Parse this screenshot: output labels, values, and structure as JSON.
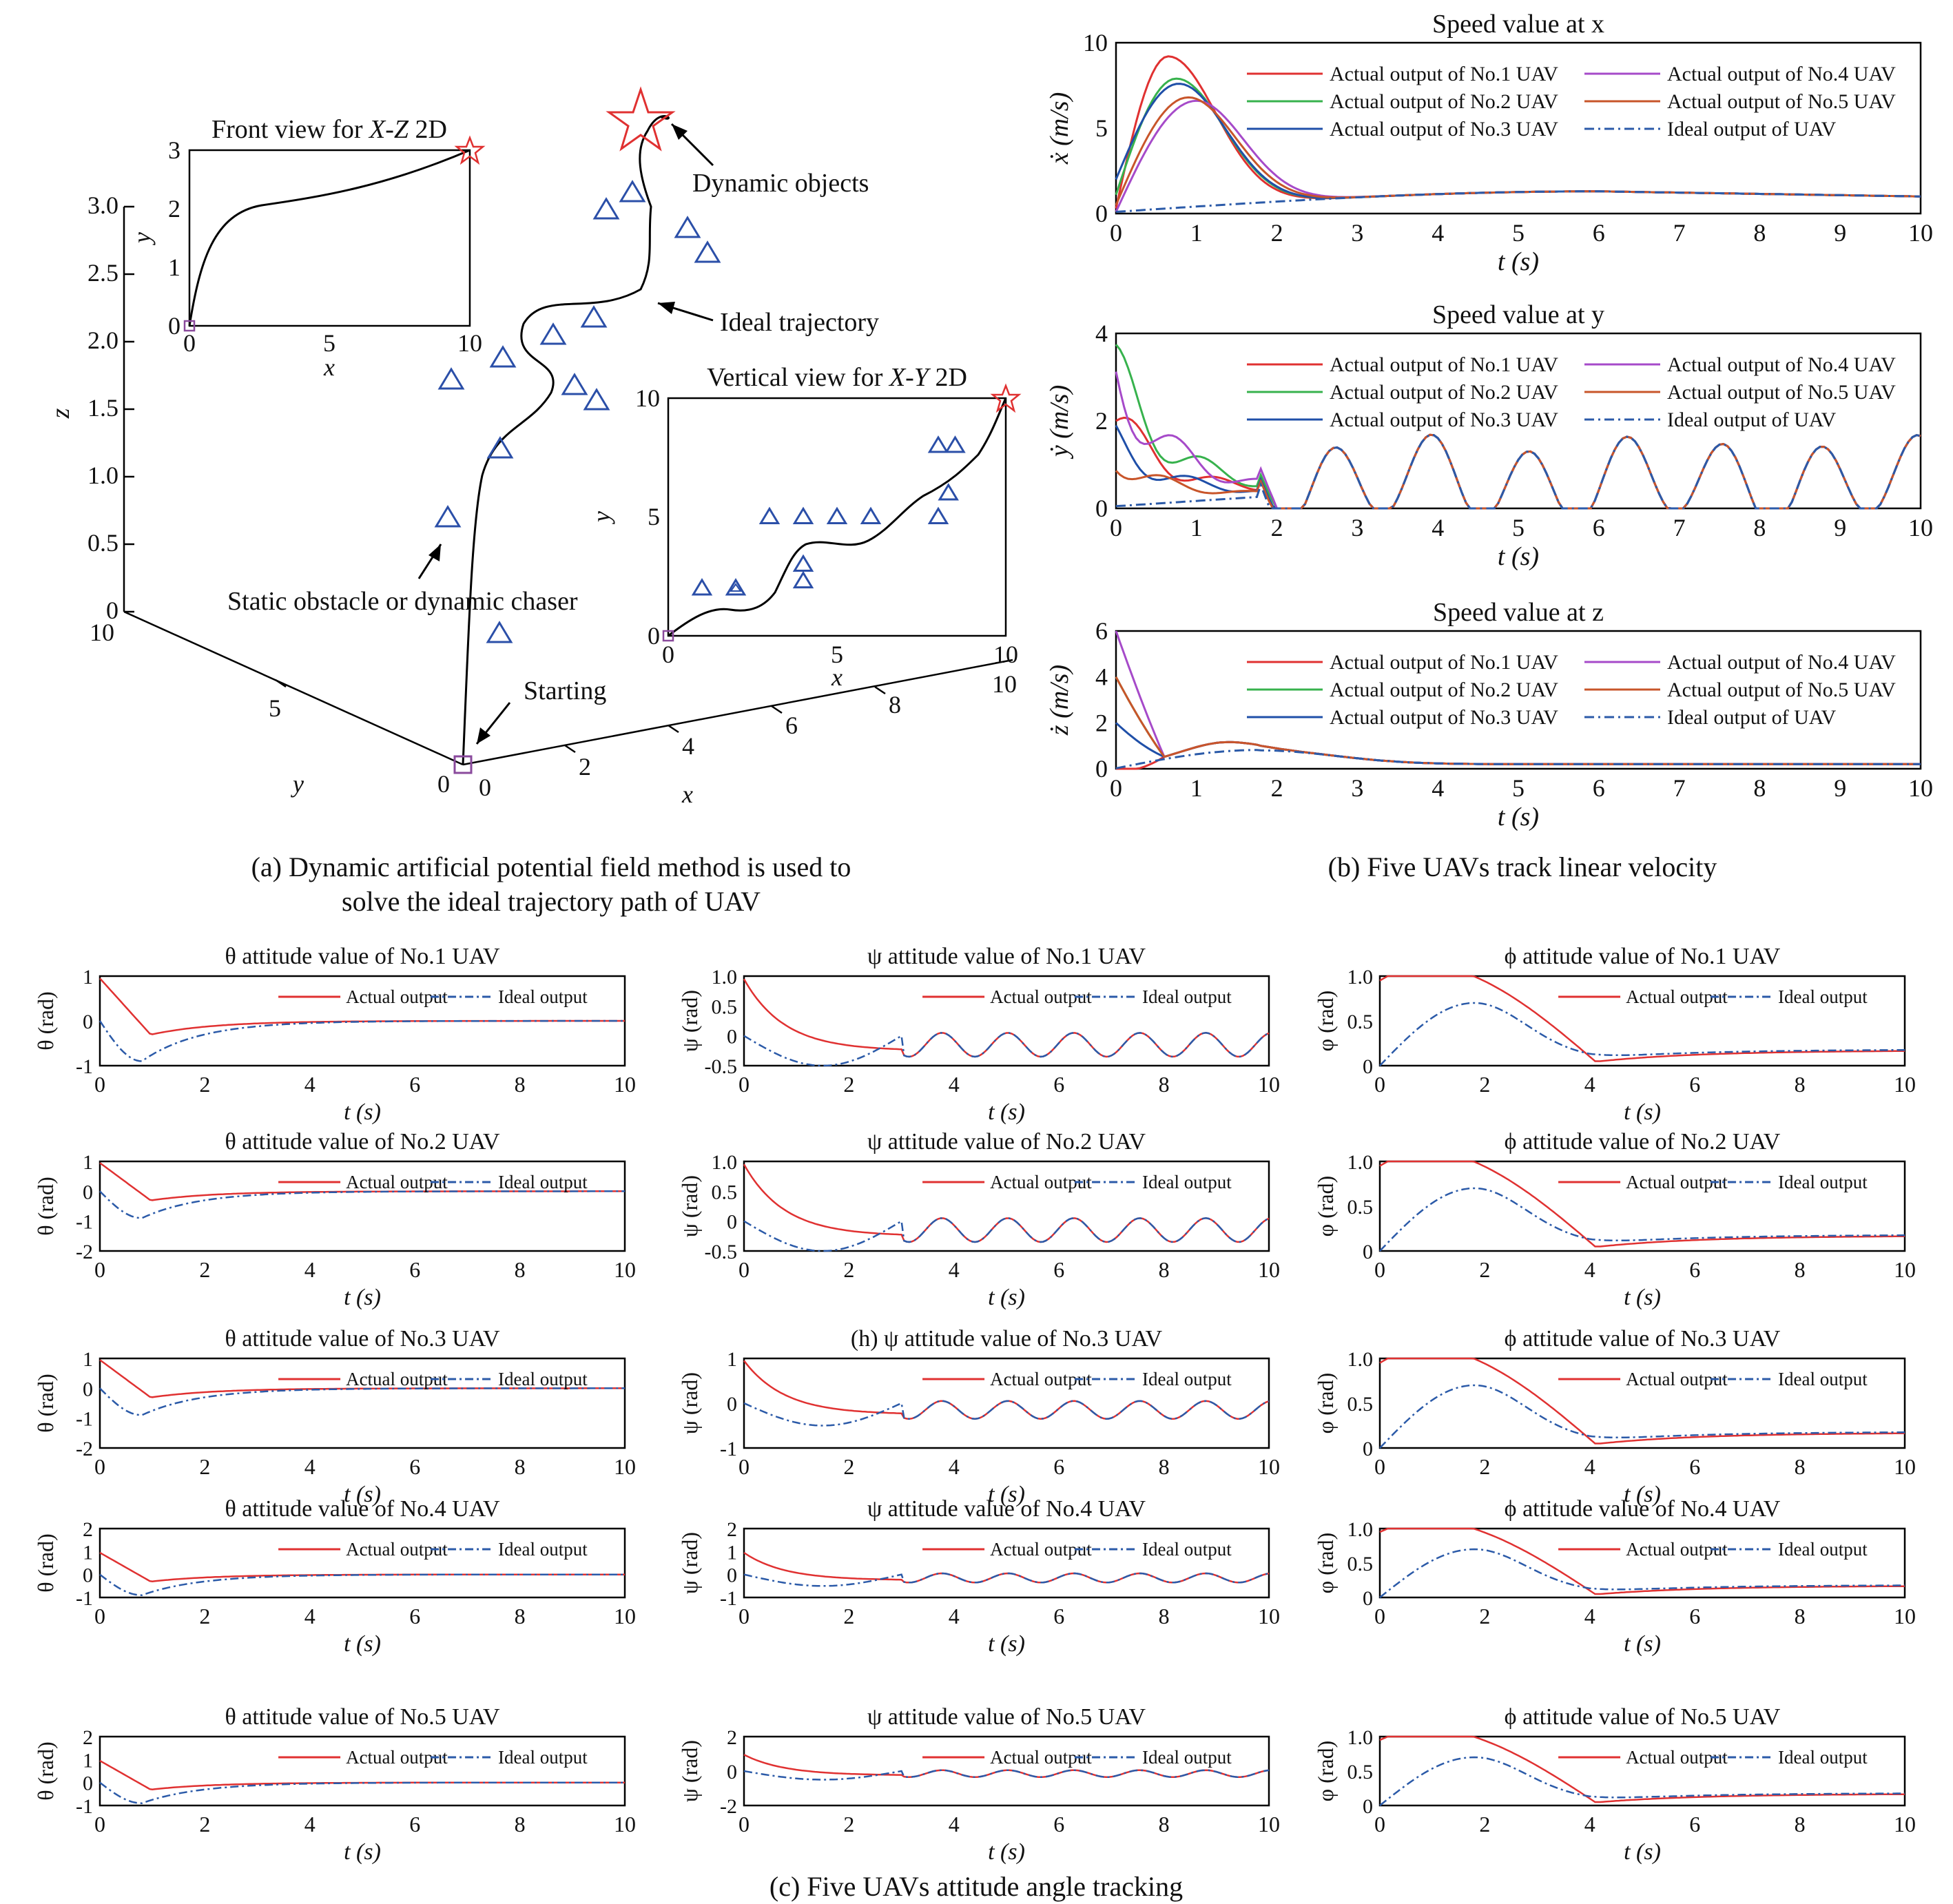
{
  "colors": {
    "uav1": "#e03131",
    "uav2": "#37b24d",
    "uav3": "#1f4fa8",
    "uav4": "#a64ac9",
    "uav5": "#c8552a",
    "ideal": "#2b5aa8",
    "obstacle": "#2b4fa8",
    "star": "#e03131",
    "start": "#8a4a9c"
  },
  "captions": {
    "a_line1": "(a) Dynamic artificial potential field method is used to",
    "a_line2": "solve the ideal trajectory path of UAV",
    "b": "(b) Five UAVs track linear velocity",
    "c": "(c) Five UAVs attitude angle tracking"
  },
  "panel_a": {
    "z_ticks": [
      "0",
      "0.5",
      "1.0",
      "1.5",
      "2.0",
      "2.5",
      "3.0"
    ],
    "z_label": "z",
    "y_ticks": [
      "10",
      "5",
      "0"
    ],
    "y_label": "y",
    "x_ticks": [
      "0",
      "2",
      "4",
      "6",
      "8",
      "10"
    ],
    "x_label": "x",
    "annotations": {
      "dynamic_objects": "Dynamic objects",
      "ideal_trajectory": "Ideal trajectory",
      "static_obstacle": "Static obstacle or dynamic chaser",
      "starting": "Starting"
    },
    "front_view": {
      "title_prefix": "Front view for ",
      "title_italic": "X-Z",
      "title_suffix": " 2D",
      "x_ticks": [
        "0",
        "5",
        "10"
      ],
      "y_ticks": [
        "0",
        "1",
        "2",
        "3"
      ],
      "x_label": "x",
      "y_label": "y"
    },
    "vertical_view": {
      "title_prefix": "Vertical view for ",
      "title_italic": "X-Y",
      "title_suffix": " 2D",
      "x_ticks": [
        "0",
        "5",
        "10"
      ],
      "y_ticks": [
        "0",
        "5",
        "10"
      ],
      "x_label": "x",
      "y_label": "y",
      "obstacles": [
        [
          1,
          2
        ],
        [
          2,
          2
        ],
        [
          3,
          5
        ],
        [
          4,
          5
        ],
        [
          5,
          5
        ],
        [
          6,
          5
        ],
        [
          4,
          3
        ],
        [
          4,
          2.3
        ],
        [
          8,
          8
        ],
        [
          8.5,
          8
        ],
        [
          8,
          5
        ],
        [
          8.3,
          6
        ]
      ]
    }
  },
  "chart_data": [
    {
      "type": "line",
      "title": "Speed value at x",
      "ylabel": "ẋ (m/s)",
      "xlabel": "t (s)",
      "xlim": [
        0,
        10
      ],
      "ylim": [
        0,
        10
      ],
      "series": [
        {
          "name": "Actual output of No.1 UAV"
        },
        {
          "name": "Actual output of No.2 UAV"
        },
        {
          "name": "Actual output of No.3 UAV"
        },
        {
          "name": "Actual output of No.4 UAV"
        },
        {
          "name": "Actual output of No.5 UAV"
        },
        {
          "name": "Ideal output of UAV"
        }
      ]
    },
    {
      "type": "line",
      "title": "Speed value at y",
      "ylabel": "ẏ (m/s)",
      "xlabel": "t (s)",
      "xlim": [
        0,
        10
      ],
      "ylim": [
        0,
        4
      ],
      "series": [
        {
          "name": "Actual output of No.1 UAV"
        },
        {
          "name": "Actual output of No.2 UAV"
        },
        {
          "name": "Actual output of No.3 UAV"
        },
        {
          "name": "Actual output of No.4 UAV"
        },
        {
          "name": "Actual output of No.5 UAV"
        },
        {
          "name": "Ideal output of UAV"
        }
      ]
    },
    {
      "type": "line",
      "title": "Speed value at z",
      "ylabel": "ż (m/s)",
      "xlabel": "t (s)",
      "xlim": [
        0,
        10
      ],
      "ylim": [
        0,
        6
      ],
      "series": [
        {
          "name": "Actual output of No.1 UAV"
        },
        {
          "name": "Actual output of No.2 UAV"
        },
        {
          "name": "Actual output of No.3 UAV"
        },
        {
          "name": "Actual output of No.4 UAV"
        },
        {
          "name": "Actual output of No.5 UAV"
        },
        {
          "name": "Ideal output of UAV"
        }
      ]
    }
  ],
  "attitude": {
    "legend_actual": "Actual output",
    "legend_ideal": "Ideal output",
    "xlabel": "t (s)",
    "rows": [
      {
        "theta": {
          "title": "θ attitude value of No.1 UAV",
          "ylabel": "θ (rad)",
          "ticks": [
            "1",
            "0",
            "-1"
          ]
        },
        "psi": {
          "title": "ψ attitude value of No.1 UAV",
          "ylabel": "ψ (rad)",
          "ticks": [
            "1.0",
            "0.5",
            "0",
            "-0.5"
          ]
        },
        "phi": {
          "title": "ϕ attitude value of No.1 UAV",
          "ylabel": "φ (rad)",
          "ticks": [
            "1.0",
            "0.5",
            "0"
          ]
        }
      },
      {
        "theta": {
          "title": "θ attitude value of No.2 UAV",
          "ylabel": "θ (rad)",
          "ticks": [
            "1",
            "0",
            "-1",
            "-2"
          ]
        },
        "psi": {
          "title": "ψ attitude value of No.2 UAV",
          "ylabel": "ψ (rad)",
          "ticks": [
            "1.0",
            "0.5",
            "0",
            "-0.5"
          ]
        },
        "phi": {
          "title": "ϕ attitude value of No.2 UAV",
          "ylabel": "φ (rad)",
          "ticks": [
            "1.0",
            "0.5",
            "0"
          ]
        }
      },
      {
        "theta": {
          "title": "θ attitude value of No.3 UAV",
          "ylabel": "θ (rad)",
          "ticks": [
            "1",
            "0",
            "-1",
            "-2"
          ]
        },
        "psi": {
          "title": "(h) ψ attitude value of No.3 UAV",
          "ylabel": "ψ (rad)",
          "ticks": [
            "1",
            "0",
            "-1"
          ]
        },
        "phi": {
          "title": "ϕ attitude value of No.3 UAV",
          "ylabel": "φ (rad)",
          "ticks": [
            "1.0",
            "0.5",
            "0"
          ]
        }
      },
      {
        "theta": {
          "title": "θ attitude value of No.4 UAV",
          "ylabel": "θ (rad)",
          "ticks": [
            "2",
            "1",
            "0",
            "-1"
          ]
        },
        "psi": {
          "title": "ψ attitude value of No.4 UAV",
          "ylabel": "ψ (rad)",
          "ticks": [
            "2",
            "1",
            "0",
            "-1"
          ]
        },
        "phi": {
          "title": "ϕ attitude value of No.4 UAV",
          "ylabel": "φ (rad)",
          "ticks": [
            "1.0",
            "0.5",
            "0"
          ]
        }
      },
      {
        "theta": {
          "title": "θ attitude value of No.5 UAV",
          "ylabel": "θ (rad)",
          "ticks": [
            "2",
            "1",
            "0",
            "-1"
          ]
        },
        "psi": {
          "title": "ψ attitude value of No.5 UAV",
          "ylabel": "ψ (rad)",
          "ticks": [
            "2",
            "0",
            "-2"
          ]
        },
        "phi": {
          "title": "ϕ attitude value of No.5 UAV",
          "ylabel": "φ (rad)",
          "ticks": [
            "1.0",
            "0.5",
            "0"
          ]
        }
      }
    ]
  }
}
